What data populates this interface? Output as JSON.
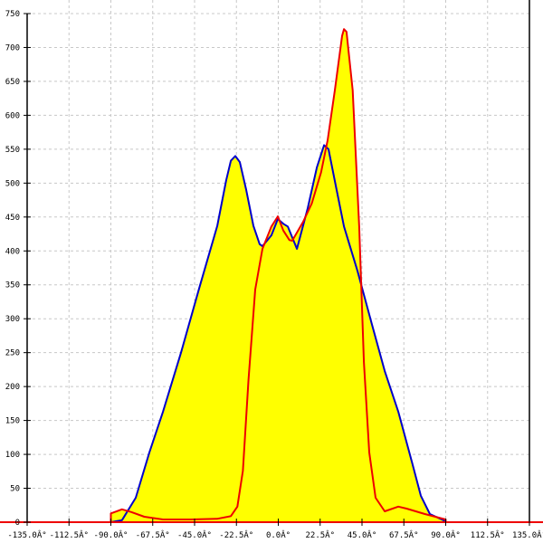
{
  "chart_data": {
    "type": "area",
    "title": "",
    "xlabel": "",
    "ylabel": "",
    "xlim": [
      -135,
      135
    ],
    "ylim": [
      0,
      750
    ],
    "grid": true,
    "legend": "none",
    "x_ticks": [
      -135,
      -112.5,
      -90,
      -67.5,
      -45,
      -22.5,
      0,
      22.5,
      45,
      67.5,
      90,
      112.5,
      135
    ],
    "x_tick_labels": [
      "-135.0Â°",
      "-112.5Â°",
      "-90.0Â°",
      "-67.5Â°",
      "-45.0Â°",
      "-22.5Â°",
      "0.0Â°",
      "22.5Â°",
      "45.0Â°",
      "67.5Â°",
      "90.0Â°",
      "112.5Â°",
      "135.0Â°"
    ],
    "y_ticks": [
      0,
      50,
      100,
      150,
      200,
      250,
      300,
      350,
      400,
      450,
      500,
      550,
      600,
      650,
      700,
      750
    ],
    "y_tick_labels": [
      "0",
      "50",
      "100",
      "150",
      "200",
      "250",
      "300",
      "350",
      "400",
      "450",
      "500",
      "550",
      "600",
      "650",
      "700",
      "750"
    ],
    "fill_color": "#ffff00",
    "series": [
      {
        "color": "#0000cc",
        "points": [
          [
            -90,
            0
          ],
          [
            -84,
            3
          ],
          [
            -76.6,
            36
          ],
          [
            -69.3,
            103
          ],
          [
            -62,
            163
          ],
          [
            -52.3,
            250
          ],
          [
            -42.6,
            344
          ],
          [
            -32.8,
            437
          ],
          [
            -28,
            504
          ],
          [
            -25.5,
            533
          ],
          [
            -23.1,
            540
          ],
          [
            -20.7,
            531
          ],
          [
            -17.3,
            491
          ],
          [
            -13.4,
            437
          ],
          [
            -10,
            410
          ],
          [
            -8.5,
            407
          ],
          [
            -3.7,
            423
          ],
          [
            -0.25,
            447
          ],
          [
            2.7,
            440
          ],
          [
            5.1,
            436
          ],
          [
            10,
            403
          ],
          [
            15.8,
            463
          ],
          [
            20.7,
            523
          ],
          [
            24.6,
            556
          ],
          [
            27,
            550
          ],
          [
            30.4,
            503
          ],
          [
            35.3,
            436
          ],
          [
            42.6,
            370
          ],
          [
            49.9,
            296
          ],
          [
            57.2,
            223
          ],
          [
            64.5,
            163
          ],
          [
            71.8,
            89
          ],
          [
            76.6,
            39
          ],
          [
            81.5,
            12
          ],
          [
            88.8,
            3
          ],
          [
            90,
            0
          ]
        ]
      },
      {
        "color": "#ee0000",
        "points": [
          [
            -90,
            0
          ],
          [
            -90,
            13
          ],
          [
            -84,
            19
          ],
          [
            -79,
            15
          ],
          [
            -72,
            8
          ],
          [
            -62,
            4
          ],
          [
            -47,
            4
          ],
          [
            -33,
            5
          ],
          [
            -25.5,
            9
          ],
          [
            -22,
            23
          ],
          [
            -19,
            76
          ],
          [
            -16,
            210
          ],
          [
            -12.4,
            343
          ],
          [
            -8.5,
            403
          ],
          [
            -3.7,
            436
          ],
          [
            -0.25,
            451
          ],
          [
            2.7,
            430
          ],
          [
            6,
            416
          ],
          [
            7.5,
            415
          ],
          [
            13.4,
            443
          ],
          [
            18,
            470
          ],
          [
            23,
            516
          ],
          [
            26.5,
            563
          ],
          [
            30.4,
            637
          ],
          [
            34.3,
            717
          ],
          [
            35.3,
            727
          ],
          [
            36.7,
            723
          ],
          [
            40,
            637
          ],
          [
            43.5,
            436
          ],
          [
            46,
            236
          ],
          [
            48.9,
            103
          ],
          [
            52.3,
            36
          ],
          [
            57.2,
            16
          ],
          [
            64.5,
            23
          ],
          [
            69,
            20
          ],
          [
            78.8,
            12
          ],
          [
            90,
            4
          ],
          [
            90,
            0
          ]
        ]
      }
    ]
  }
}
